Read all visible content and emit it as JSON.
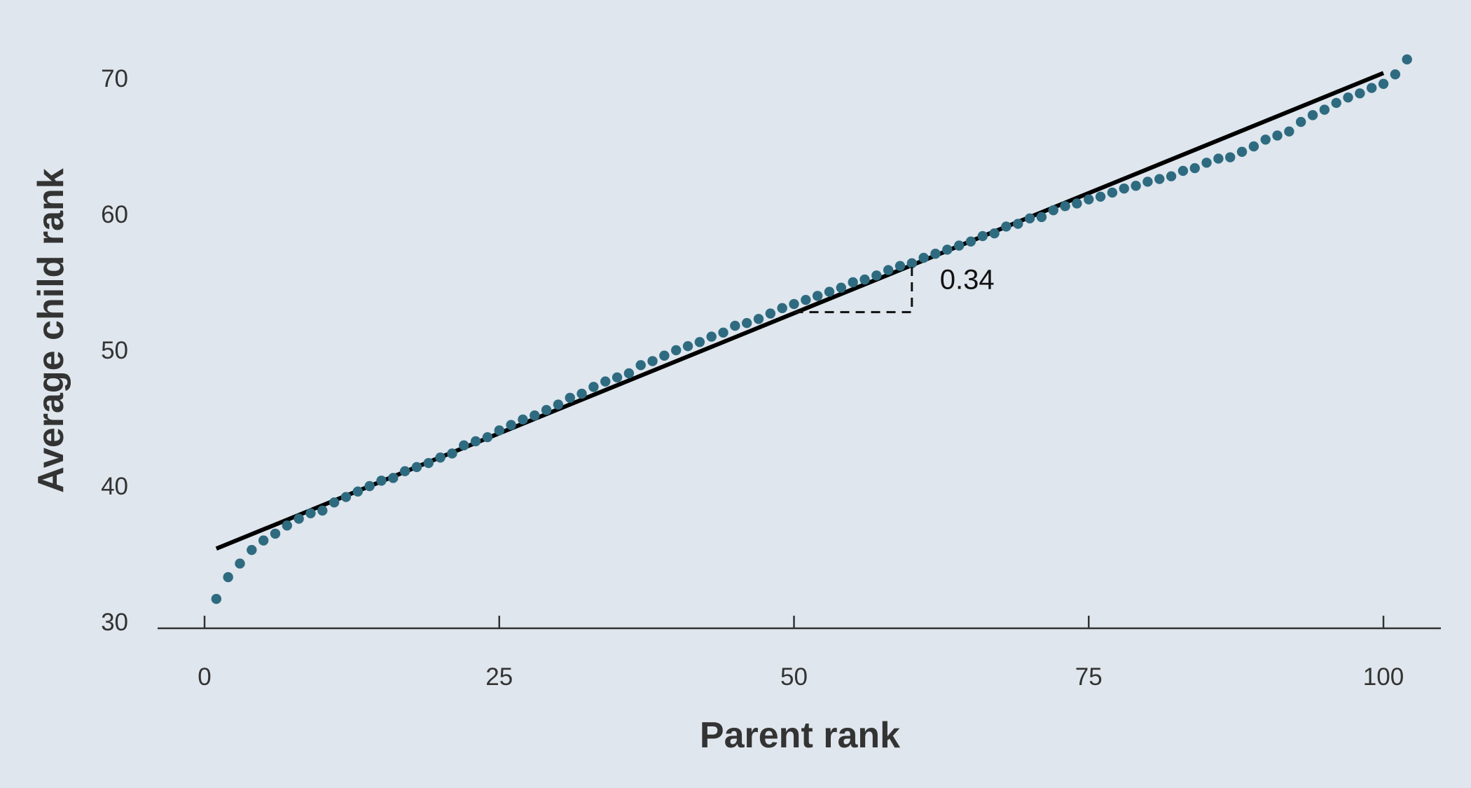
{
  "chart_data": {
    "type": "scatter",
    "title": "",
    "xlabel": "Parent rank",
    "ylabel": "Average child rank",
    "xlim": [
      -4,
      105
    ],
    "ylim": [
      29.5,
      73
    ],
    "x_ticks": [
      0,
      25,
      50,
      75,
      100
    ],
    "x_tick_labels": [
      "0",
      "25",
      "50",
      "75",
      "100"
    ],
    "y_ticks": [
      30,
      40,
      50,
      60,
      70
    ],
    "y_tick_labels": [
      "30",
      "40",
      "50",
      "60",
      "70"
    ],
    "grid": false,
    "legend": "none",
    "point_color": "#2e6b80",
    "line_color": "#000000",
    "series": [
      {
        "values": [
          [
            1,
            31.7
          ],
          [
            2,
            33.3
          ],
          [
            3,
            34.3
          ],
          [
            4,
            35.3
          ],
          [
            5,
            36.0
          ],
          [
            6,
            36.5
          ],
          [
            7,
            37.1
          ],
          [
            8,
            37.6
          ],
          [
            9,
            38.0
          ],
          [
            10,
            38.2
          ],
          [
            11,
            38.8
          ],
          [
            12,
            39.2
          ],
          [
            13,
            39.6
          ],
          [
            14,
            40.0
          ],
          [
            15,
            40.4
          ],
          [
            16,
            40.6
          ],
          [
            17,
            41.1
          ],
          [
            18,
            41.4
          ],
          [
            19,
            41.7
          ],
          [
            20,
            42.1
          ],
          [
            21,
            42.4
          ],
          [
            22,
            43.0
          ],
          [
            23,
            43.3
          ],
          [
            24,
            43.6
          ],
          [
            25,
            44.1
          ],
          [
            26,
            44.5
          ],
          [
            27,
            44.9
          ],
          [
            28,
            45.2
          ],
          [
            29,
            45.6
          ],
          [
            30,
            46.0
          ],
          [
            31,
            46.5
          ],
          [
            32,
            46.8
          ],
          [
            33,
            47.3
          ],
          [
            34,
            47.7
          ],
          [
            35,
            48.0
          ],
          [
            36,
            48.3
          ],
          [
            37,
            48.9
          ],
          [
            38,
            49.2
          ],
          [
            39,
            49.6
          ],
          [
            40,
            50.0
          ],
          [
            41,
            50.3
          ],
          [
            42,
            50.6
          ],
          [
            43,
            51.0
          ],
          [
            44,
            51.3
          ],
          [
            45,
            51.8
          ],
          [
            46,
            52.0
          ],
          [
            47,
            52.3
          ],
          [
            48,
            52.7
          ],
          [
            49,
            53.1
          ],
          [
            50,
            53.4
          ],
          [
            51,
            53.7
          ],
          [
            52,
            54.0
          ],
          [
            53,
            54.3
          ],
          [
            54,
            54.6
          ],
          [
            55,
            55.0
          ],
          [
            56,
            55.2
          ],
          [
            57,
            55.5
          ],
          [
            58,
            55.9
          ],
          [
            59,
            56.2
          ],
          [
            60,
            56.4
          ],
          [
            61,
            56.8
          ],
          [
            62,
            57.1
          ],
          [
            63,
            57.4
          ],
          [
            64,
            57.7
          ],
          [
            65,
            58.0
          ],
          [
            66,
            58.4
          ],
          [
            67,
            58.6
          ],
          [
            68,
            59.1
          ],
          [
            69,
            59.3
          ],
          [
            70,
            59.7
          ],
          [
            71,
            59.8
          ],
          [
            72,
            60.3
          ],
          [
            73,
            60.6
          ],
          [
            74,
            60.8
          ],
          [
            75,
            61.1
          ],
          [
            76,
            61.3
          ],
          [
            77,
            61.6
          ],
          [
            78,
            61.9
          ],
          [
            79,
            62.1
          ],
          [
            80,
            62.4
          ],
          [
            81,
            62.6
          ],
          [
            82,
            62.8
          ],
          [
            83,
            63.2
          ],
          [
            84,
            63.4
          ],
          [
            85,
            63.8
          ],
          [
            86,
            64.1
          ],
          [
            87,
            64.2
          ],
          [
            88,
            64.6
          ],
          [
            89,
            65.0
          ],
          [
            90,
            65.5
          ],
          [
            91,
            65.8
          ],
          [
            92,
            66.1
          ],
          [
            93,
            66.8
          ],
          [
            94,
            67.3
          ],
          [
            95,
            67.7
          ],
          [
            96,
            68.2
          ],
          [
            97,
            68.6
          ],
          [
            98,
            68.9
          ],
          [
            99,
            69.3
          ],
          [
            100,
            69.6
          ],
          [
            101,
            70.3
          ],
          [
            102,
            71.4
          ]
        ]
      }
    ],
    "fit_line": {
      "x": [
        1,
        100
      ],
      "y": [
        35.4,
        70.4
      ],
      "slope": 0.34
    },
    "slope_annotation": {
      "label": "0.34",
      "x_start": 50,
      "x_end": 60,
      "y_base": 52.8,
      "y_top": 56.2
    }
  }
}
